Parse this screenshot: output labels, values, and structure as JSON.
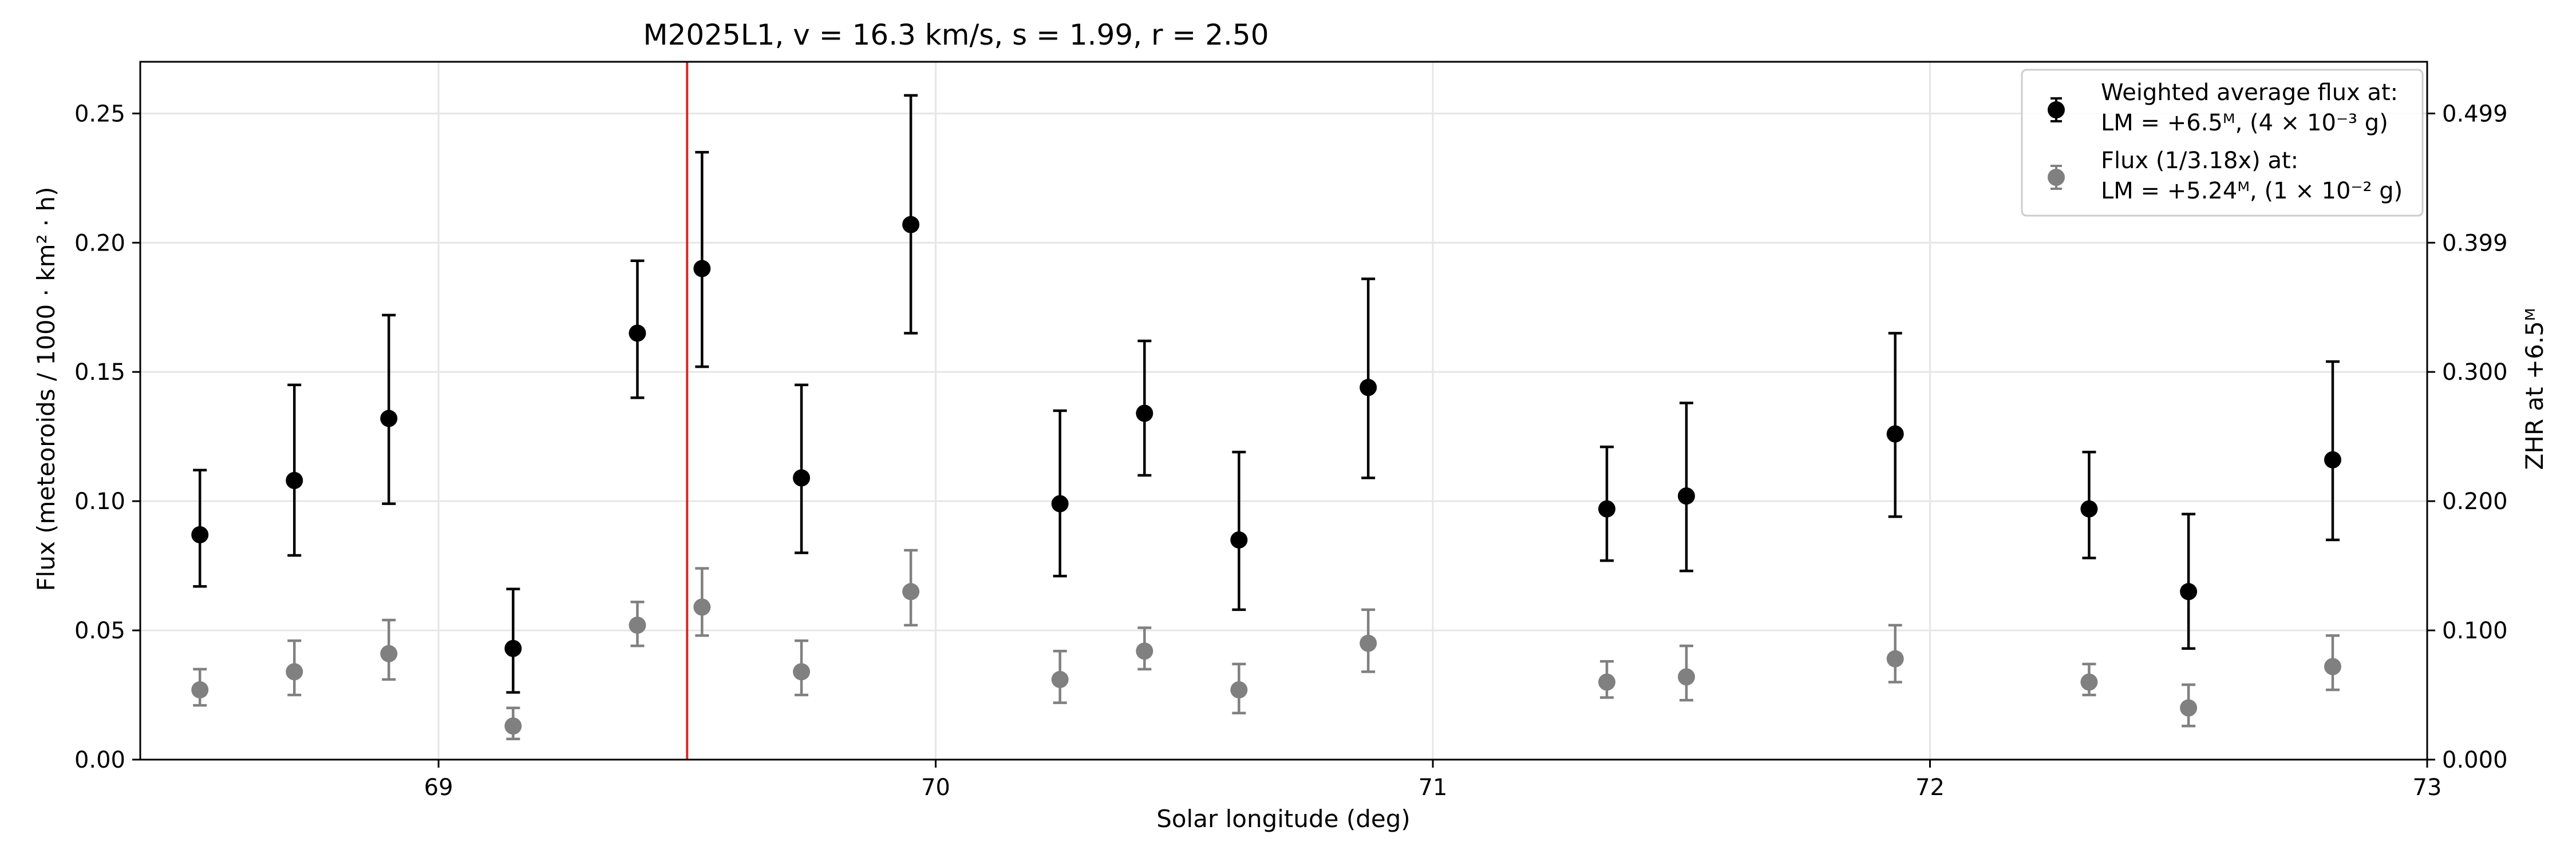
{
  "chart_data": {
    "type": "scatter",
    "title": "M2025L1, v = 16.3 km/s, s = 1.99, r = 2.50",
    "xlabel": "Solar longitude (deg)",
    "ylabel": "Flux (meteoroids / 1000 · km² · h)",
    "y2label": "ZHR at +6.5ᴹ",
    "xlim": [
      68.4,
      73.0
    ],
    "ylim": [
      0.0,
      0.27
    ],
    "xticks": [
      "69",
      "70",
      "71",
      "72",
      "73"
    ],
    "xtick_values": [
      69,
      70,
      71,
      72,
      73
    ],
    "yticks": [
      "0.00",
      "0.05",
      "0.10",
      "0.15",
      "0.20",
      "0.25"
    ],
    "ytick_values": [
      0.0,
      0.05,
      0.1,
      0.15,
      0.2,
      0.25
    ],
    "y2ticks": [
      "0.000",
      "0.100",
      "0.200",
      "0.300",
      "0.399",
      "0.499"
    ],
    "y2tick_values": [
      0.0,
      0.05,
      0.1,
      0.15,
      0.2,
      0.25
    ],
    "grid": true,
    "legend_position": "top-right",
    "vline": {
      "x": 69.5,
      "color": "#d62728"
    },
    "series": [
      {
        "name_line1": "Weighted average flux at:",
        "name_line2": "LM = +6.5ᴹ, (4 × 10⁻³ g)",
        "color": "#000000",
        "x": [
          68.52,
          68.71,
          68.9,
          69.15,
          69.4,
          69.53,
          69.73,
          69.95,
          70.25,
          70.42,
          70.61,
          70.87,
          71.35,
          71.51,
          71.93,
          72.32,
          72.52,
          72.81
        ],
        "y": [
          0.087,
          0.108,
          0.132,
          0.043,
          0.165,
          0.19,
          0.109,
          0.207,
          0.099,
          0.134,
          0.085,
          0.144,
          0.097,
          0.102,
          0.126,
          0.097,
          0.065,
          0.116
        ],
        "ylow": [
          0.067,
          0.079,
          0.099,
          0.026,
          0.14,
          0.152,
          0.08,
          0.165,
          0.071,
          0.11,
          0.058,
          0.109,
          0.077,
          0.073,
          0.094,
          0.078,
          0.043,
          0.085
        ],
        "yhigh": [
          0.112,
          0.145,
          0.172,
          0.066,
          0.193,
          0.235,
          0.145,
          0.257,
          0.135,
          0.162,
          0.119,
          0.186,
          0.121,
          0.138,
          0.165,
          0.119,
          0.095,
          0.154
        ]
      },
      {
        "name_line1": "Flux (1/3.18x) at:",
        "name_line2": "LM = +5.24ᴹ, (1 × 10⁻² g)",
        "color": "#808080",
        "x": [
          68.52,
          68.71,
          68.9,
          69.15,
          69.4,
          69.53,
          69.73,
          69.95,
          70.25,
          70.42,
          70.61,
          70.87,
          71.35,
          71.51,
          71.93,
          72.32,
          72.52,
          72.81
        ],
        "y": [
          0.027,
          0.034,
          0.041,
          0.013,
          0.052,
          0.059,
          0.034,
          0.065,
          0.031,
          0.042,
          0.027,
          0.045,
          0.03,
          0.032,
          0.039,
          0.03,
          0.02,
          0.036
        ],
        "ylow": [
          0.021,
          0.025,
          0.031,
          0.008,
          0.044,
          0.048,
          0.025,
          0.052,
          0.022,
          0.035,
          0.018,
          0.034,
          0.024,
          0.023,
          0.03,
          0.025,
          0.013,
          0.027
        ],
        "yhigh": [
          0.035,
          0.046,
          0.054,
          0.02,
          0.061,
          0.074,
          0.046,
          0.081,
          0.042,
          0.051,
          0.037,
          0.058,
          0.038,
          0.044,
          0.052,
          0.037,
          0.029,
          0.048
        ]
      }
    ]
  }
}
